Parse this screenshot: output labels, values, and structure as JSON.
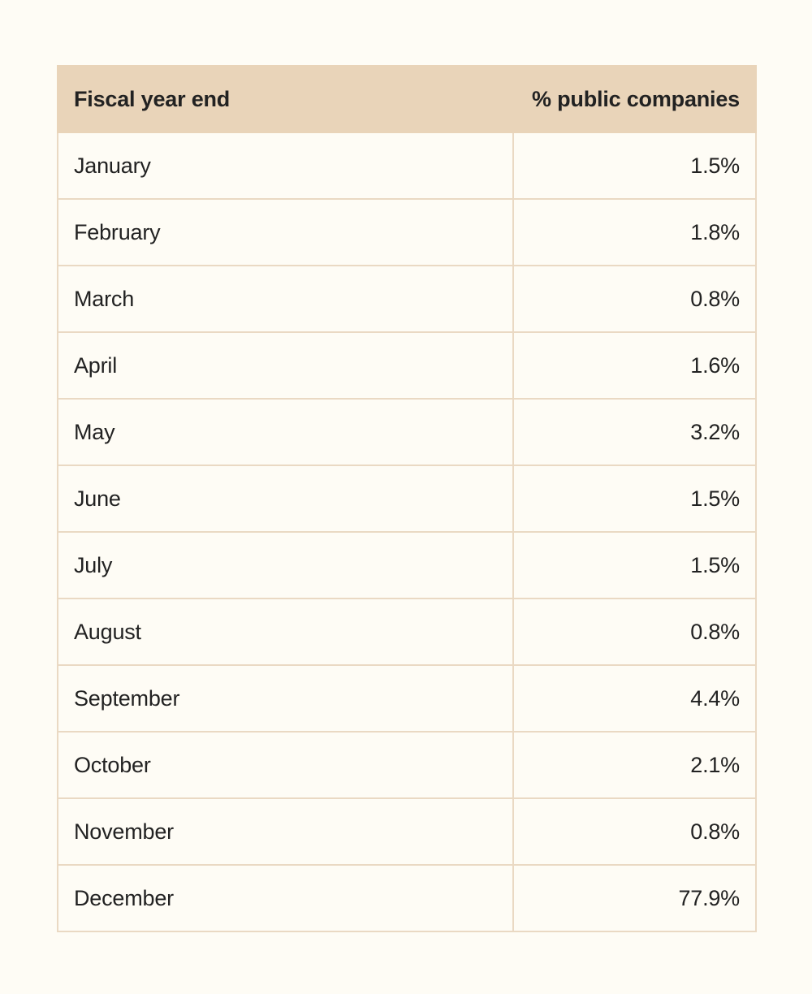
{
  "table": {
    "headers": [
      "Fiscal year end",
      "% public companies"
    ],
    "rows": [
      [
        "January",
        "1.5%"
      ],
      [
        "February",
        "1.8%"
      ],
      [
        "March",
        "0.8%"
      ],
      [
        "April",
        "1.6%"
      ],
      [
        "May",
        "3.2%"
      ],
      [
        "June",
        "1.5%"
      ],
      [
        "July",
        "1.5%"
      ],
      [
        "August",
        "0.8%"
      ],
      [
        "September",
        "4.4%"
      ],
      [
        "October",
        "2.1%"
      ],
      [
        "November",
        "0.8%"
      ],
      [
        "December",
        "77.9%"
      ]
    ]
  },
  "colors": {
    "background": "#fefcf5",
    "header_fill": "#e9d4b9",
    "border": "#ead9c3",
    "text": "#222222"
  }
}
